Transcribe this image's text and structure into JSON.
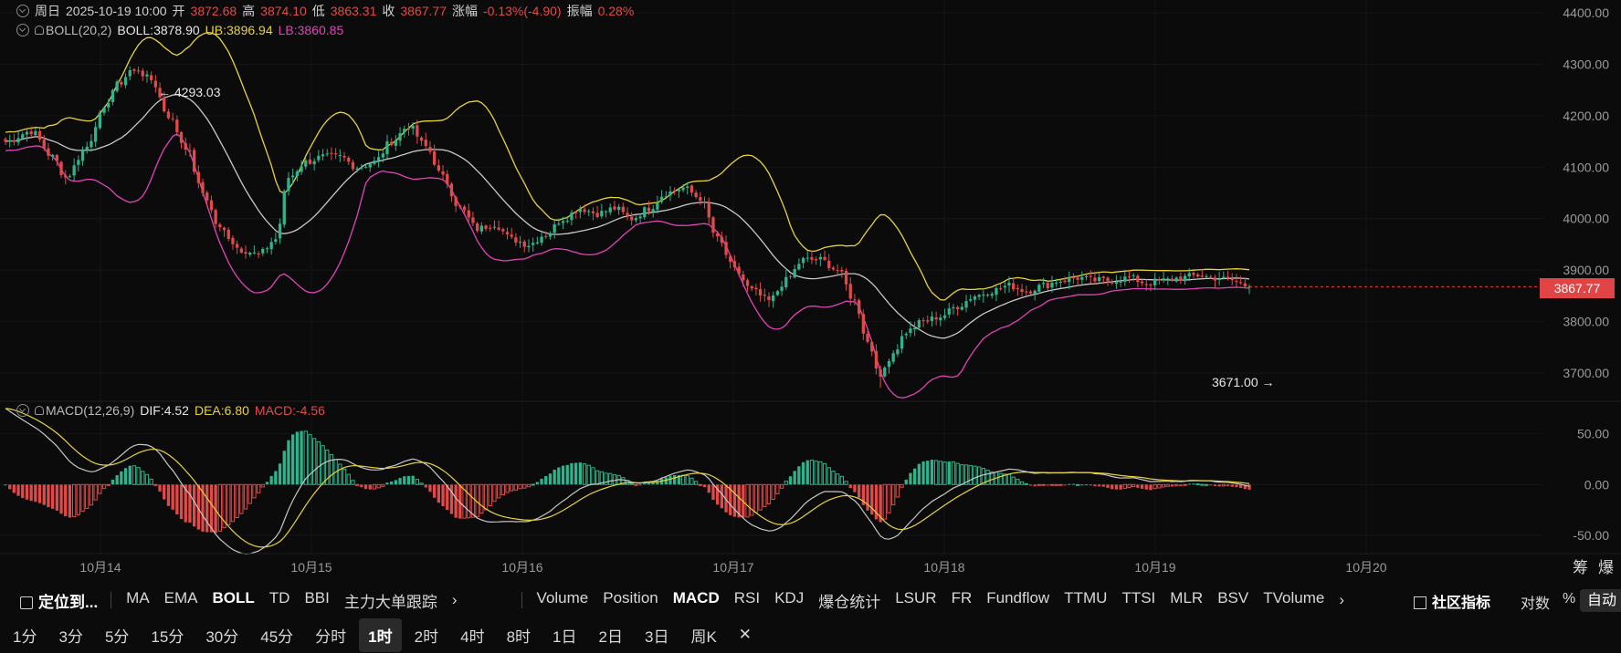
{
  "header": {
    "period": "周日",
    "datetime": "2025-10-19 10:00",
    "open_label": "开",
    "open": "3872.68",
    "high_label": "高",
    "high": "3874.10",
    "low_label": "低",
    "low": "3863.31",
    "close_label": "收",
    "close": "3867.77",
    "change_label": "涨幅",
    "change": "-0.13%(-4.90)",
    "amp_label": "振幅",
    "amp": "0.28%"
  },
  "boll_legend": {
    "name": "BOLL(20,2)",
    "mid": "BOLL:3878.90",
    "ub": "UB:3896.94",
    "lb": "LB:3860.85"
  },
  "macd_legend": {
    "name": "MACD(12,26,9)",
    "dif": "DIF:4.52",
    "dea": "DEA:6.80",
    "macd": "MACD:-4.56"
  },
  "price_tag": "3867.77",
  "annotations": {
    "high": "← 4293.03",
    "low": "3671.00 →"
  },
  "colors": {
    "up": "#2fb38d",
    "down": "#e24a4a",
    "mid": "#c8c8c8",
    "ub": "#e8d33a",
    "lb": "#e044b8",
    "dif": "#c8c8c8",
    "dea": "#e8d33a"
  },
  "chart_data": [
    {
      "type": "candlestick",
      "interval": "1H",
      "x_ticks": [
        "10月14",
        "10月15",
        "10月16",
        "10月17",
        "10月18",
        "10月19",
        "10月20"
      ],
      "y_ticks": [
        "4400.00",
        "4300.00",
        "4200.00",
        "4100.00",
        "4000.00",
        "3900.00",
        "3800.00",
        "3700.00"
      ],
      "ylim": [
        3645,
        4425
      ],
      "close_anchors": [
        [
          0,
          4150
        ],
        [
          6,
          4170
        ],
        [
          11,
          4120
        ],
        [
          14,
          4080
        ],
        [
          19,
          4140
        ],
        [
          22,
          4200
        ],
        [
          26,
          4260
        ],
        [
          30,
          4293
        ],
        [
          34,
          4270
        ],
        [
          38,
          4200
        ],
        [
          42,
          4140
        ],
        [
          46,
          4050
        ],
        [
          50,
          3980
        ],
        [
          55,
          3940
        ],
        [
          59,
          3930
        ],
        [
          63,
          3960
        ],
        [
          66,
          4080
        ],
        [
          70,
          4110
        ],
        [
          74,
          4120
        ],
        [
          78,
          4120
        ],
        [
          82,
          4100
        ],
        [
          86,
          4110
        ],
        [
          90,
          4150
        ],
        [
          94,
          4180
        ],
        [
          98,
          4140
        ],
        [
          102,
          4080
        ],
        [
          106,
          4020
        ],
        [
          110,
          3980
        ],
        [
          114,
          3990
        ],
        [
          118,
          3960
        ],
        [
          122,
          3950
        ],
        [
          126,
          3970
        ],
        [
          130,
          4000
        ],
        [
          134,
          4020
        ],
        [
          138,
          4010
        ],
        [
          142,
          4020
        ],
        [
          146,
          4000
        ],
        [
          150,
          4020
        ],
        [
          154,
          4050
        ],
        [
          158,
          4060
        ],
        [
          162,
          4040
        ],
        [
          166,
          3960
        ],
        [
          170,
          3900
        ],
        [
          174,
          3860
        ],
        [
          178,
          3840
        ],
        [
          182,
          3880
        ],
        [
          186,
          3920
        ],
        [
          190,
          3920
        ],
        [
          194,
          3900
        ],
        [
          198,
          3840
        ],
        [
          201,
          3760
        ],
        [
          204,
          3700
        ],
        [
          207,
          3740
        ],
        [
          210,
          3780
        ],
        [
          214,
          3800
        ],
        [
          218,
          3810
        ],
        [
          222,
          3830
        ],
        [
          226,
          3850
        ],
        [
          230,
          3860
        ],
        [
          234,
          3870
        ],
        [
          238,
          3860
        ],
        [
          242,
          3870
        ],
        [
          246,
          3880
        ],
        [
          250,
          3885
        ],
        [
          254,
          3880
        ],
        [
          258,
          3880
        ],
        [
          262,
          3885
        ],
        [
          266,
          3875
        ],
        [
          270,
          3880
        ],
        [
          274,
          3885
        ],
        [
          278,
          3890
        ],
        [
          282,
          3885
        ],
        [
          286,
          3880
        ],
        [
          290,
          3868
        ]
      ],
      "candle_count": 291,
      "high_marker": {
        "value": 4293.03,
        "index": 30
      },
      "low_marker": {
        "value": 3671.0,
        "index": 204
      },
      "last_price": 3867.77,
      "indicator": "BOLL(20,2)"
    },
    {
      "type": "macd",
      "params": "MACD(12,26,9)",
      "y_ticks": [
        "50.00",
        "0.00",
        "-50.00"
      ],
      "ylim": [
        -68,
        82
      ],
      "last": {
        "dif": 4.52,
        "dea": 6.8,
        "macd": -4.56
      }
    }
  ],
  "toolbar": {
    "locate": "定位到...",
    "main_indicators": [
      "MA",
      "EMA",
      "BOLL",
      "TD",
      "BBI",
      "主力大单跟踪"
    ],
    "active_main": "BOLL",
    "sub_indicators": [
      "Volume",
      "Position",
      "MACD",
      "RSI",
      "KDJ",
      "爆仓统计",
      "LSUR",
      "FR",
      "Fundflow",
      "TTMU",
      "TTSI",
      "MLR",
      "BSV",
      "TVolume"
    ],
    "active_sub": "MACD",
    "community": "社区指标",
    "log": "对数",
    "percent": "%",
    "auto": "自动",
    "chip": "筹",
    "burst": "爆"
  },
  "timebar": {
    "intervals": [
      "1分",
      "3分",
      "5分",
      "15分",
      "30分",
      "45分",
      "分时",
      "1时",
      "2时",
      "4时",
      "8时",
      "1日",
      "2日",
      "3日",
      "周K"
    ],
    "active": "1时",
    "close_symbol": "✕"
  }
}
